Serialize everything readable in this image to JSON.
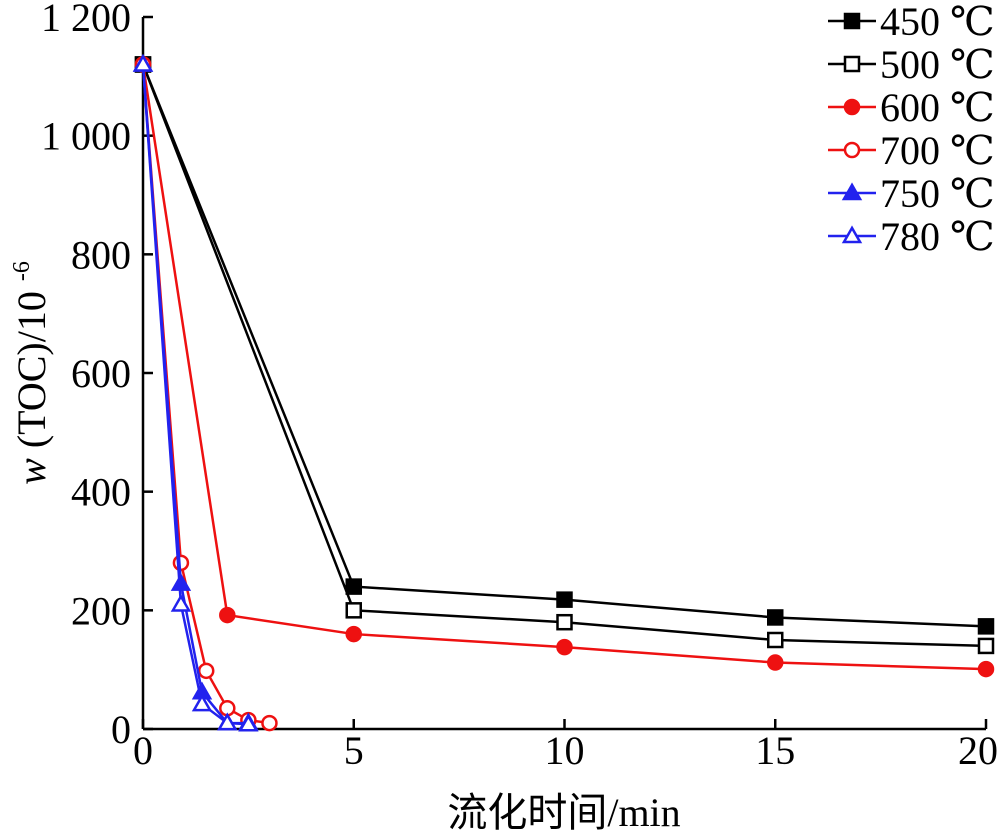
{
  "chart_data": {
    "type": "line",
    "xlabel": "流化时间/min",
    "ylabel_var": "w",
    "ylabel_rest": "(TOC)/10",
    "ylabel_exp": "-6",
    "xlim": [
      0,
      20
    ],
    "ylim": [
      0,
      1200
    ],
    "xticks": [
      0,
      5,
      10,
      15,
      20
    ],
    "xtick_labels": [
      "0",
      "5",
      "10",
      "15",
      "20"
    ],
    "yticks": [
      0,
      200,
      400,
      600,
      800,
      1000,
      1200
    ],
    "ytick_labels": [
      "0",
      "200",
      "400",
      "600",
      "800",
      "1 000",
      "1 200"
    ],
    "grid": false,
    "legend_position": "top-right",
    "series": [
      {
        "name": "450 ℃",
        "color": "#000000",
        "marker": "square",
        "filled": true,
        "x": [
          0,
          5,
          10,
          15,
          20
        ],
        "y": [
          1120,
          240,
          218,
          188,
          173
        ]
      },
      {
        "name": "500 ℃",
        "color": "#000000",
        "marker": "square",
        "filled": false,
        "x": [
          0,
          5,
          10,
          15,
          20
        ],
        "y": [
          1120,
          200,
          180,
          150,
          140
        ]
      },
      {
        "name": "600 ℃",
        "color": "#ee1111",
        "marker": "circle",
        "filled": true,
        "x": [
          0,
          2,
          5,
          10,
          15,
          20
        ],
        "y": [
          1120,
          192,
          160,
          138,
          112,
          101
        ]
      },
      {
        "name": "700 ℃",
        "color": "#ee1111",
        "marker": "circle",
        "filled": false,
        "x": [
          0,
          0.9,
          1.5,
          2.0,
          2.5,
          3.0
        ],
        "y": [
          1120,
          280,
          98,
          35,
          15,
          10
        ]
      },
      {
        "name": "750 ℃",
        "color": "#2222ee",
        "marker": "triangle",
        "filled": true,
        "x": [
          0,
          0.9,
          1.4,
          2.0,
          2.5
        ],
        "y": [
          1120,
          245,
          62,
          10,
          10
        ]
      },
      {
        "name": "780 ℃",
        "color": "#2222ee",
        "marker": "triangle",
        "filled": false,
        "x": [
          0,
          0.9,
          1.4,
          2.0,
          2.5
        ],
        "y": [
          1120,
          210,
          42,
          10,
          8
        ]
      }
    ]
  }
}
